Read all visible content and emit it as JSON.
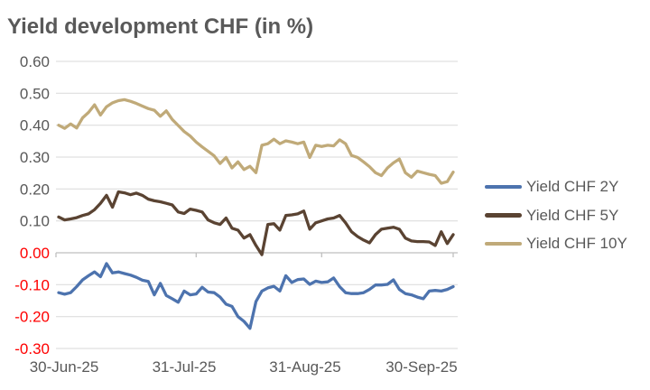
{
  "title": "Yield development CHF (in %)",
  "chart_data": {
    "type": "line",
    "title": "Yield development CHF (in %)",
    "grid": true,
    "legend_position": "right",
    "x_axis": {
      "tick_labels": [
        "30-Jun-25",
        "31-Jul-25",
        "31-Aug-25",
        "30-Sep-25"
      ],
      "tick_indices": [
        0,
        23,
        44,
        66
      ]
    },
    "y_axis": {
      "min": -0.3,
      "max": 0.6,
      "step": 0.1,
      "tick_labels": [
        "0.60",
        "0.50",
        "0.40",
        "0.30",
        "0.20",
        "0.10",
        "0.00",
        "-0.10",
        "-0.20",
        "-0.30"
      ],
      "label_color": "#595959",
      "negative_label_color": "#ff0000"
    },
    "colors": {
      "gridline": "#d9d9d9",
      "zero_axis": "#bfbfbf",
      "text": "#595959"
    },
    "series": [
      {
        "name": "Yield CHF 2Y",
        "color": "#4d73ae",
        "values": [
          -0.125,
          -0.13,
          -0.125,
          -0.106,
          -0.085,
          -0.072,
          -0.06,
          -0.075,
          -0.034,
          -0.063,
          -0.06,
          -0.065,
          -0.07,
          -0.077,
          -0.086,
          -0.09,
          -0.132,
          -0.096,
          -0.134,
          -0.144,
          -0.155,
          -0.12,
          -0.132,
          -0.129,
          -0.108,
          -0.123,
          -0.125,
          -0.139,
          -0.161,
          -0.168,
          -0.2,
          -0.215,
          -0.237,
          -0.153,
          -0.12,
          -0.11,
          -0.105,
          -0.12,
          -0.072,
          -0.093,
          -0.084,
          -0.082,
          -0.099,
          -0.089,
          -0.093,
          -0.091,
          -0.079,
          -0.106,
          -0.125,
          -0.128,
          -0.128,
          -0.125,
          -0.115,
          -0.101,
          -0.101,
          -0.099,
          -0.085,
          -0.115,
          -0.128,
          -0.132,
          -0.139,
          -0.144,
          -0.12,
          -0.118,
          -0.12,
          -0.115,
          -0.106
        ]
      },
      {
        "name": "Yield CHF 5Y",
        "color": "#5a4332",
        "values": [
          0.112,
          0.103,
          0.106,
          0.11,
          0.117,
          0.122,
          0.135,
          0.155,
          0.18,
          0.143,
          0.191,
          0.188,
          0.182,
          0.187,
          0.18,
          0.168,
          0.163,
          0.16,
          0.155,
          0.15,
          0.128,
          0.123,
          0.137,
          0.133,
          0.128,
          0.103,
          0.094,
          0.089,
          0.109,
          0.077,
          0.071,
          0.046,
          0.057,
          0.023,
          -0.006,
          0.089,
          0.091,
          0.071,
          0.117,
          0.119,
          0.122,
          0.131,
          0.074,
          0.094,
          0.1,
          0.106,
          0.109,
          0.117,
          0.094,
          0.066,
          0.051,
          0.04,
          0.031,
          0.057,
          0.074,
          0.077,
          0.08,
          0.074,
          0.046,
          0.037,
          0.035,
          0.035,
          0.034,
          0.023,
          0.066,
          0.029,
          0.057
        ]
      },
      {
        "name": "Yield CHF 10Y",
        "color": "#c0aa79",
        "values": [
          0.4,
          0.39,
          0.404,
          0.391,
          0.423,
          0.44,
          0.464,
          0.432,
          0.458,
          0.47,
          0.477,
          0.48,
          0.475,
          0.468,
          0.46,
          0.452,
          0.447,
          0.428,
          0.445,
          0.418,
          0.399,
          0.38,
          0.366,
          0.347,
          0.332,
          0.318,
          0.304,
          0.28,
          0.299,
          0.266,
          0.285,
          0.261,
          0.271,
          0.251,
          0.337,
          0.342,
          0.356,
          0.342,
          0.351,
          0.347,
          0.342,
          0.347,
          0.299,
          0.337,
          0.333,
          0.337,
          0.335,
          0.354,
          0.342,
          0.305,
          0.299,
          0.285,
          0.27,
          0.251,
          0.242,
          0.266,
          0.282,
          0.294,
          0.251,
          0.237,
          0.256,
          0.251,
          0.246,
          0.242,
          0.218,
          0.223,
          0.253
        ]
      }
    ]
  }
}
